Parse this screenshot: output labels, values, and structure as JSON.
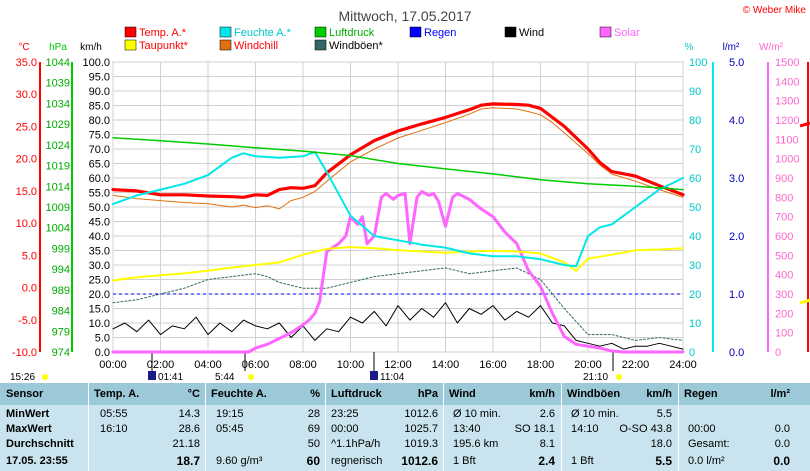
{
  "title": "Mittwoch, 17.05.2017",
  "copyright": "© Weber Mike",
  "colors": {
    "temp": "#ff0000",
    "humidity": "#00e8e8",
    "pressure": "#00cc00",
    "rain": "#0000ff",
    "wind": "#000000",
    "solar": "#ff66ff",
    "dewpoint": "#ffff00",
    "windchill": "#e07010",
    "gusts": "#336666",
    "rain_axis": "#0000bb",
    "solar_axis": "#ff66cc",
    "panel": "#c9e4ee",
    "panel_head": "#9cc9d8"
  },
  "legend": [
    {
      "label": "Temp. A.*",
      "color": "#ff0000",
      "text_color": "#ff0000"
    },
    {
      "label": "Feuchte A.*",
      "color": "#00e8e8",
      "text_color": "#00c8c8"
    },
    {
      "label": "Luftdruck",
      "color": "#00cc00",
      "text_color": "#00aa00"
    },
    {
      "label": "Regen",
      "color": "#0000ff",
      "text_color": "#0000ff"
    },
    {
      "label": "Wind",
      "color": "#000000",
      "text_color": "#000000"
    },
    {
      "label": "Solar",
      "color": "#ff66ff",
      "text_color": "#ff66ff"
    },
    {
      "label": "Taupunkt*",
      "color": "#ffff00",
      "text_color": "#ff0000"
    },
    {
      "label": "Windchill",
      "color": "#e07010",
      "text_color": "#ff0000"
    },
    {
      "label": "Windböen*",
      "color": "#336666",
      "text_color": "#000000"
    }
  ],
  "chart_data": {
    "type": "line",
    "title": "Mittwoch, 17.05.2017",
    "axes": {
      "temp": {
        "unit": "°C",
        "range": [
          -10,
          35
        ],
        "ticks": [
          "35.0",
          "30.0",
          "25.0",
          "20.0",
          "15.0",
          "10.0",
          "5.0",
          "0.0",
          "-5.0",
          "-10.0"
        ]
      },
      "pressure": {
        "unit": "hPa",
        "range": [
          974,
          1044
        ],
        "ticks": [
          "1044",
          "1039",
          "1034",
          "1029",
          "1024",
          "1019",
          "1014",
          "1009",
          "1004",
          "999",
          "994",
          "989",
          "984",
          "979",
          "974"
        ]
      },
      "wind": {
        "unit": "km/h",
        "range": [
          0,
          100
        ],
        "ticks": [
          "100.0",
          "95.0",
          "90.0",
          "85.0",
          "80.0",
          "75.0",
          "70.0",
          "65.0",
          "60.0",
          "55.0",
          "50.0",
          "45.0",
          "40.0",
          "35.0",
          "30.0",
          "25.0",
          "20.0",
          "15.0",
          "10.0",
          "5.0",
          "0.0"
        ]
      },
      "humidity": {
        "unit": "%",
        "range": [
          0,
          100
        ],
        "ticks": [
          "100",
          "90",
          "80",
          "70",
          "60",
          "50",
          "40",
          "30",
          "20",
          "10",
          "0"
        ]
      },
      "rain": {
        "unit": "l/m²",
        "range": [
          0,
          5
        ],
        "ticks": [
          "5.0",
          "4.0",
          "3.0",
          "2.0",
          "1.0",
          "0.0"
        ]
      },
      "solar": {
        "unit": "W/m²",
        "range": [
          0,
          1500
        ],
        "ticks": [
          "1500",
          "1400",
          "1300",
          "1200",
          "1100",
          "1000",
          "900",
          "800",
          "700",
          "600",
          "500",
          "400",
          "300",
          "200",
          "100",
          "0"
        ]
      }
    },
    "x_ticks": [
      "00:00",
      "02:00",
      "04:00",
      "06:00",
      "08:00",
      "10:00",
      "12:00",
      "14:00",
      "16:00",
      "18:00",
      "20:00",
      "22:00",
      "24:00"
    ],
    "x_range_hours": [
      0,
      24
    ],
    "sun_moon_markers": [
      {
        "label": "15:26",
        "kind": "moonset"
      },
      {
        "label": "01:41",
        "kind": "moonrise"
      },
      {
        "label": "5:44",
        "kind": "sunrise"
      },
      {
        "label": "11:04",
        "kind": "moon"
      },
      {
        "label": "21:10",
        "kind": "sunset"
      }
    ],
    "grid": true,
    "series": [
      {
        "name": "Temp. A.*",
        "axis": "temp",
        "color": "#ff0000",
        "width": 3.2,
        "x": [
          0,
          1,
          2,
          3,
          4,
          5,
          5.5,
          6,
          6.5,
          7,
          7.5,
          8,
          8.5,
          9,
          10,
          11,
          12,
          13,
          14,
          15,
          15.5,
          16,
          17,
          17.5,
          18,
          18.5,
          19,
          20,
          20.5,
          21,
          22,
          23,
          24
        ],
        "y": [
          15.2,
          15.0,
          14.4,
          14.4,
          14.2,
          14.1,
          14.0,
          14.4,
          14.3,
          15.2,
          15.5,
          15.4,
          15.8,
          17.8,
          20.6,
          22.8,
          24.3,
          25.4,
          26.4,
          27.6,
          28.3,
          28.5,
          28.4,
          28.3,
          27.8,
          26.4,
          25.0,
          21.5,
          19.4,
          18.0,
          17.3,
          15.8,
          14.4
        ]
      },
      {
        "name": "Windchill",
        "axis": "temp",
        "color": "#e07010",
        "width": 1,
        "x": [
          0,
          1,
          2,
          3,
          4,
          5,
          5.5,
          6,
          6.5,
          7,
          7.5,
          8,
          8.5,
          9,
          10,
          11,
          12,
          13,
          14,
          15,
          15.5,
          16,
          17,
          17.5,
          18,
          18.5,
          19,
          20,
          20.5,
          21,
          22,
          23,
          24
        ],
        "y": [
          14.3,
          13.8,
          13.5,
          13.2,
          13.0,
          12.5,
          12.8,
          12.4,
          12.7,
          12.2,
          13.5,
          14.0,
          14.9,
          16.5,
          19.5,
          21.5,
          23.2,
          24.4,
          25.6,
          26.9,
          27.7,
          27.9,
          27.7,
          27.3,
          26.8,
          25.6,
          24.0,
          20.8,
          19.0,
          17.6,
          16.5,
          15.2,
          14.0
        ]
      },
      {
        "name": "Taupunkt*",
        "axis": "temp",
        "color": "#ffff00",
        "width": 2,
        "x": [
          0,
          1,
          2,
          3,
          4,
          5,
          6,
          7,
          8,
          9,
          10,
          11,
          12,
          13,
          14,
          15,
          16,
          17,
          18,
          19,
          19.5,
          20,
          21,
          22,
          23,
          24
        ],
        "y": [
          1.1,
          1.6,
          1.9,
          2.2,
          2.6,
          3.1,
          3.5,
          3.9,
          5.1,
          6.0,
          6.3,
          6.1,
          5.8,
          5.6,
          5.4,
          5.6,
          5.7,
          5.6,
          5.3,
          3.9,
          2.6,
          4.5,
          5.1,
          5.8,
          5.9,
          6.1
        ]
      },
      {
        "name": "Feuchte A.*",
        "axis": "humidity",
        "color": "#00e8e8",
        "width": 2,
        "x": [
          0,
          1,
          2,
          3,
          4,
          4.5,
          5,
          5.5,
          6,
          7,
          8,
          8.5,
          9,
          10,
          11,
          12,
          13,
          14,
          15,
          16,
          17,
          18,
          19,
          19.5,
          20,
          20.5,
          21,
          22,
          23,
          24
        ],
        "y": [
          51,
          54,
          56,
          58,
          61,
          64,
          67,
          68.5,
          67.5,
          67,
          67.5,
          69,
          62,
          47,
          40,
          38.5,
          37,
          36,
          34,
          33,
          33,
          32,
          30,
          29.5,
          40,
          43,
          44,
          50,
          56,
          60
        ]
      },
      {
        "name": "Luftdruck",
        "axis": "pressure",
        "color": "#00cc00",
        "width": 1.5,
        "x": [
          0,
          2,
          4,
          6,
          8,
          10,
          12,
          14,
          16,
          18,
          20,
          22,
          24
        ],
        "y": [
          1025.7,
          1025.0,
          1024.2,
          1023.3,
          1022.5,
          1021.4,
          1019.5,
          1018.2,
          1017.0,
          1015.6,
          1014.6,
          1014.0,
          1013.2
        ]
      }
    ],
    "wind": {
      "name": "Wind",
      "axis": "wind",
      "color": "#000000",
      "width": 1,
      "x": [
        0,
        0.5,
        1,
        1.5,
        2,
        2.5,
        3,
        3.5,
        4,
        4.5,
        5,
        5.5,
        6,
        6.5,
        7,
        7.5,
        8,
        8.5,
        9,
        9.5,
        10,
        10.5,
        11,
        11.5,
        12,
        12.5,
        13,
        13.5,
        14,
        14.5,
        15,
        15.5,
        16,
        16.5,
        17,
        17.5,
        18,
        18.5,
        19,
        19.5,
        20,
        20.5,
        21,
        21.5,
        22,
        22.5,
        23,
        23.5,
        24
      ],
      "y": [
        8,
        10,
        7,
        11,
        6,
        9,
        8,
        12,
        6,
        10,
        7,
        11,
        9,
        8,
        10,
        5,
        9,
        4,
        8,
        7,
        12,
        10,
        14,
        9,
        16,
        11,
        15,
        12,
        17,
        10,
        15,
        13,
        16,
        11,
        14,
        12,
        16,
        10,
        9,
        4,
        3,
        2,
        3,
        1,
        2,
        2,
        3,
        2,
        1
      ]
    },
    "gusts": {
      "name": "Windböen*",
      "axis": "wind",
      "color": "#336666",
      "width": 1,
      "dash": "2,2",
      "x": [
        0,
        1,
        2,
        3,
        4,
        5,
        6,
        6.5,
        7,
        8,
        9,
        10,
        11,
        12,
        13,
        14,
        15,
        16,
        17,
        18,
        19,
        20,
        21,
        22,
        23,
        24
      ],
      "y": [
        17,
        18,
        20,
        22,
        25,
        26,
        27,
        26,
        24,
        22,
        22,
        24,
        26,
        27,
        28,
        29,
        27,
        28,
        29,
        25,
        15,
        6,
        6,
        4,
        5,
        4
      ]
    },
    "solar": {
      "name": "Solar",
      "axis": "solar",
      "color": "#ff66ff",
      "width": 3,
      "x": [
        0,
        5.7,
        6,
        6.5,
        7,
        7.5,
        8,
        8.3,
        8.5,
        8.7,
        9,
        9.5,
        9.8,
        10,
        10.3,
        10.5,
        10.7,
        11,
        11.3,
        11.5,
        11.8,
        12,
        12.3,
        12.5,
        12.8,
        13,
        13.3,
        13.5,
        13.7,
        14,
        14.3,
        14.5,
        15,
        15.5,
        16,
        16.5,
        17,
        17.5,
        18,
        18.5,
        19,
        19.5,
        20,
        20.5,
        21,
        21.5,
        24
      ],
      "y": [
        0,
        0,
        20,
        40,
        70,
        100,
        140,
        170,
        200,
        260,
        520,
        560,
        600,
        700,
        660,
        700,
        560,
        600,
        800,
        820,
        790,
        810,
        820,
        560,
        800,
        830,
        810,
        820,
        780,
        650,
        800,
        820,
        790,
        740,
        700,
        620,
        560,
        420,
        340,
        200,
        80,
        40,
        30,
        20,
        5,
        0,
        0
      ]
    },
    "rain_line": {
      "name": "Regen",
      "axis": "rain",
      "color": "#0000ff",
      "value": 1.0,
      "style": "dashed"
    }
  },
  "stats": {
    "headers": {
      "sensor": "Sensor",
      "temp": "Temp. A.",
      "temp_unit": "°C",
      "hum": "Feuchte A.",
      "hum_unit": "%",
      "press": "Luftdruck",
      "press_unit": "hPa",
      "wind": "Wind",
      "wind_unit": "km/h",
      "gust": "Windböen",
      "gust_unit": "km/h",
      "rain": "Regen",
      "rain_unit": "l/m²"
    },
    "rows": [
      {
        "label": "MinWert",
        "t_time": "05:55",
        "t_val": "14.3",
        "h_time": "19:15",
        "h_val": "28",
        "p_time": "23:25",
        "p_val": "1012.6",
        "w_desc": "Ø 10 min.",
        "w_val": "2.6",
        "g_desc": "Ø 10 min.",
        "g_val": "5.5",
        "r_desc": "",
        "r_val": ""
      },
      {
        "label": "MaxWert",
        "t_time": "16:10",
        "t_val": "28.6",
        "h_time": "05:45",
        "h_val": "69",
        "p_time": "00:00",
        "p_val": "1025.7",
        "w_desc": "13:40",
        "w_mid": "SO 18.1",
        "g_desc": "14:10",
        "g_mid": "O-SO 43.8",
        "r_desc": "00:00",
        "r_val": "0.0"
      },
      {
        "label": "Durchschnitt",
        "t_time": "",
        "t_val": "21.18",
        "h_time": "",
        "h_val": "50",
        "p_time": "^1.1hPa/h",
        "p_val": "1019.3",
        "w_desc": "195.6 km",
        "w_val": "8.1",
        "g_desc": "",
        "g_val": "18.0",
        "r_desc": "Gesamt:",
        "r_val": "0.0"
      },
      {
        "label": "17.05. 23:55",
        "t_time": "",
        "t_val": "18.7",
        "h_time": "9.60 g/m³",
        "h_val": "60",
        "p_time": "regnerisch",
        "p_val": "1012.6",
        "w_desc": "1 Bft",
        "w_val": "2.4",
        "g_desc": "1 Bft",
        "g_val": "5.5",
        "r_desc": "0.0 l/m²",
        "r_val": "0.0"
      }
    ]
  }
}
